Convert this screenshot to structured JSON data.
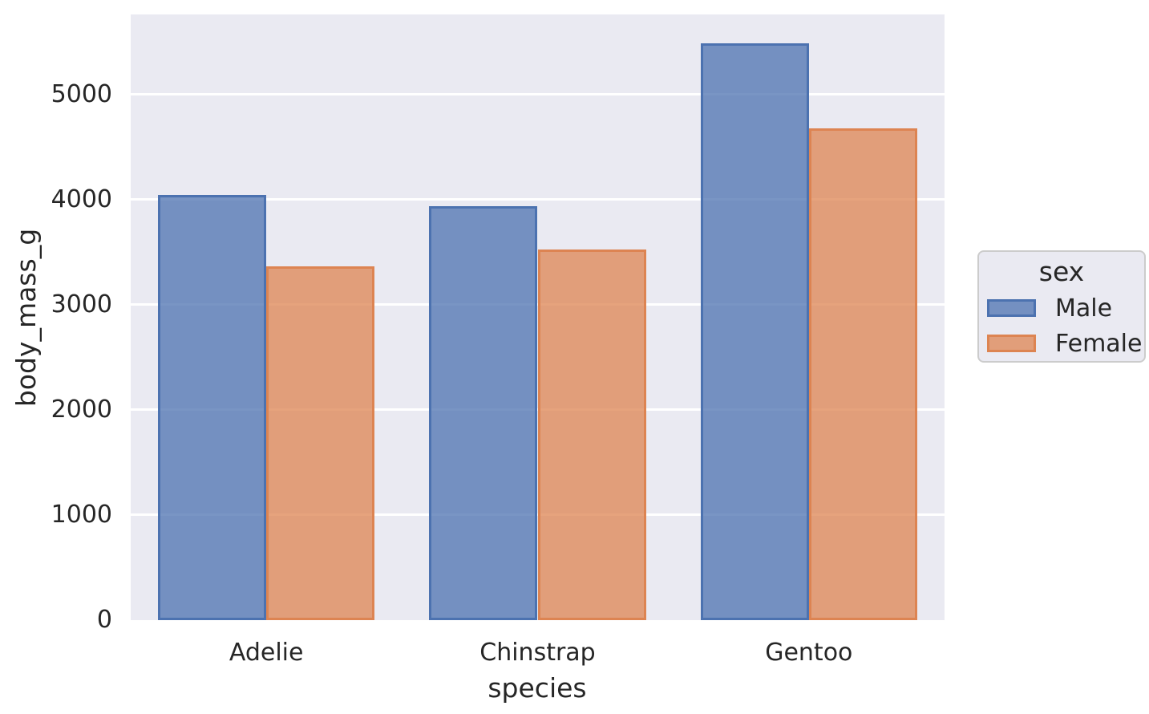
{
  "chart_data": {
    "type": "bar",
    "title": "",
    "xlabel": "species",
    "ylabel": "body_mass_g",
    "categories": [
      "Adelie",
      "Chinstrap",
      "Gentoo"
    ],
    "series": [
      {
        "name": "Male",
        "values": [
          4043,
          3939,
          5485
        ],
        "color": "#4c72b0"
      },
      {
        "name": "Female",
        "values": [
          3369,
          3527,
          4680
        ],
        "color": "#dd8452"
      }
    ],
    "ylim": [
      0,
      5763
    ],
    "yticks": [
      0,
      1000,
      2000,
      3000,
      4000,
      5000
    ],
    "grid": true,
    "bar_fill_alpha": 0.75,
    "legend": {
      "title": "sex",
      "position": "outside-right"
    }
  },
  "style": {
    "figure_bg": "#ffffff",
    "axes_bg": "#eaeaf2",
    "grid_color": "#ffffff",
    "text_color": "#262626",
    "legend_bg": "#eaeaf2",
    "legend_border": "#cccccc"
  }
}
